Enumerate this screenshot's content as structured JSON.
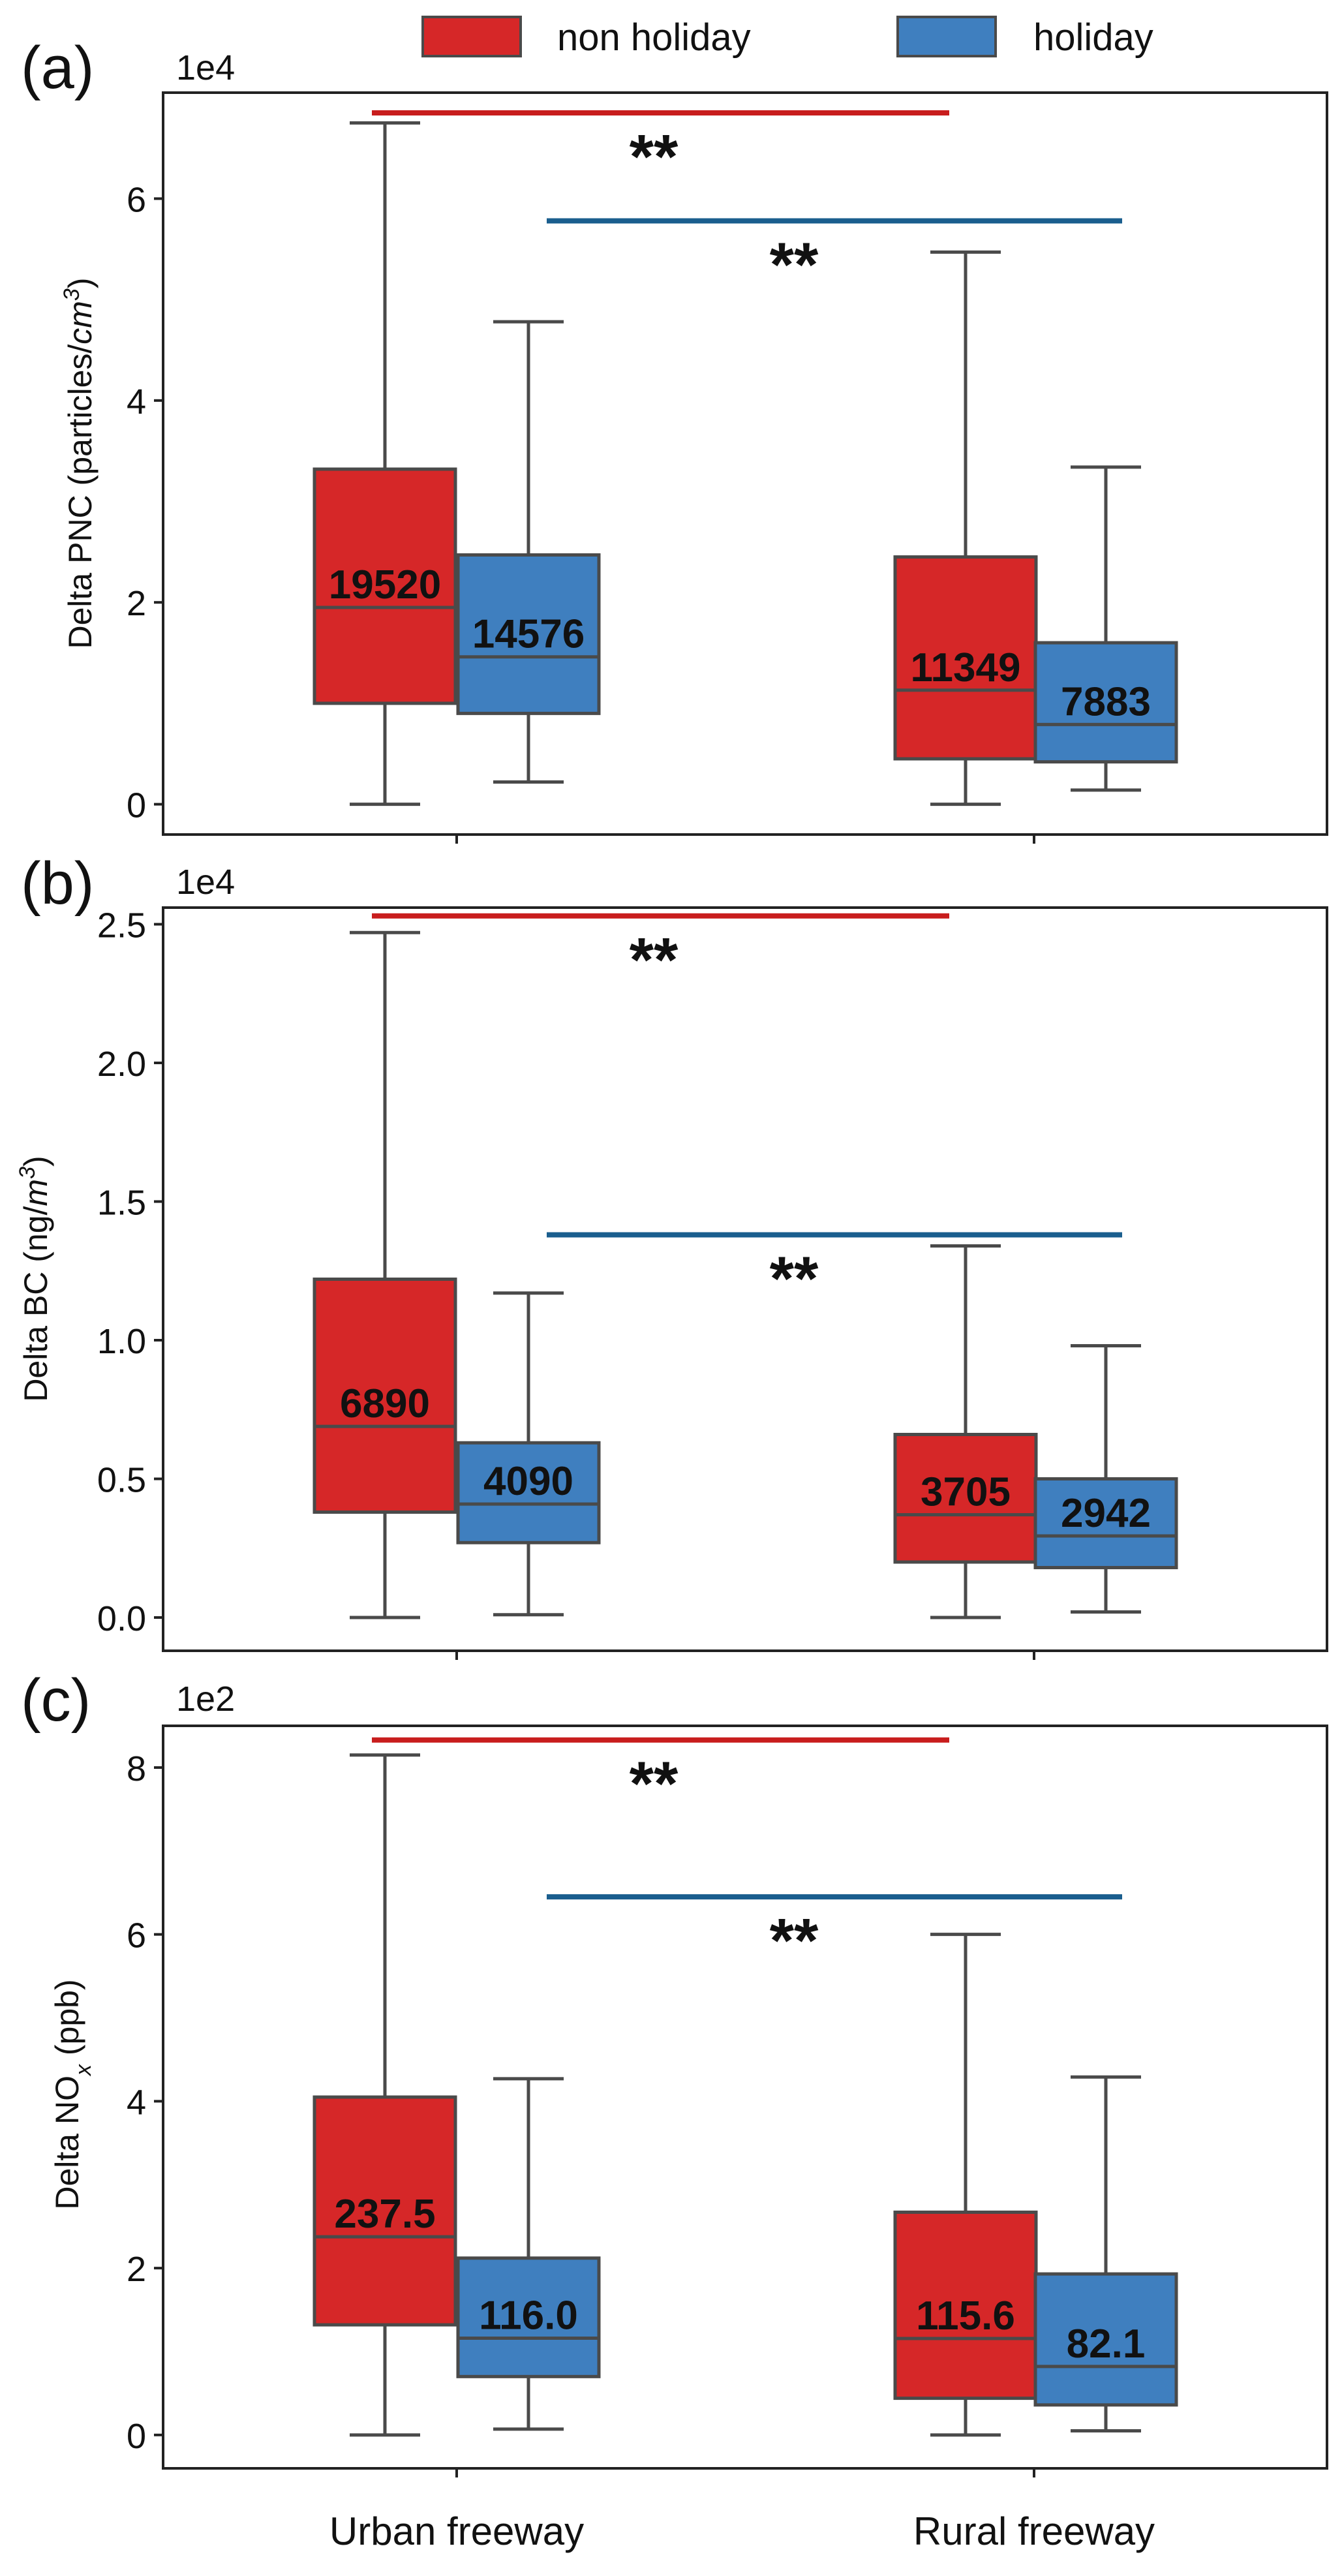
{
  "legend": {
    "position": "top-center",
    "items": [
      {
        "label": "non holiday",
        "color": "#d62728"
      },
      {
        "label": "holiday",
        "color": "#3f7fbf"
      }
    ]
  },
  "colors": {
    "non_holiday": "#d62728",
    "holiday": "#3f7fbf",
    "box_edge": "#4a4a4a",
    "sig_red": "#c81d1d",
    "sig_blue": "#1a5e8e",
    "axis": "#222222"
  },
  "chart_data": [
    {
      "type": "box",
      "panel_label": "(a)",
      "scale_label": "1e4",
      "ylabel_main": "Delta PNC (particles/",
      "ylabel_unit": "cm",
      "ylabel_sup": "3",
      "ylabel_end": ")",
      "categories": [
        "Urban freeway",
        "Rural freeway"
      ],
      "ylim": [
        -0.3,
        7.05
      ],
      "yticks": [
        0,
        2,
        4,
        6
      ],
      "ytick_labels": [
        "0",
        "2",
        "4",
        "6"
      ],
      "series": [
        {
          "name": "non holiday",
          "boxes": [
            {
              "category": "Urban freeway",
              "whislo": 0,
              "q1": 1.0,
              "med": 1.95,
              "q3": 3.32,
              "whishi": 6.75,
              "label": "19520"
            },
            {
              "category": "Rural freeway",
              "whislo": 0,
              "q1": 0.45,
              "med": 1.13,
              "q3": 2.45,
              "whishi": 5.47,
              "label": "11349"
            }
          ]
        },
        {
          "name": "holiday",
          "boxes": [
            {
              "category": "Urban freeway",
              "whislo": 0.22,
              "q1": 0.9,
              "med": 1.46,
              "q3": 2.47,
              "whishi": 4.78,
              "label": "14576"
            },
            {
              "category": "Rural freeway",
              "whislo": 0.14,
              "q1": 0.42,
              "med": 0.79,
              "q3": 1.6,
              "whishi": 3.34,
              "label": "7883"
            }
          ]
        }
      ],
      "significance": [
        {
          "series": "non holiday",
          "y": 6.85,
          "mark": "**"
        },
        {
          "series": "holiday",
          "y": 5.78,
          "mark": "**"
        }
      ]
    },
    {
      "type": "box",
      "panel_label": "(b)",
      "scale_label": "1e4",
      "ylabel_main": "Delta BC (ng/",
      "ylabel_unit": "m",
      "ylabel_sup": "3",
      "ylabel_end": ")",
      "categories": [
        "Urban freeway",
        "Rural freeway"
      ],
      "ylim": [
        -0.12,
        2.56
      ],
      "yticks": [
        0,
        0.5,
        1.0,
        1.5,
        2.0,
        2.5
      ],
      "ytick_labels": [
        "0.0",
        "0.5",
        "1.0",
        "1.5",
        "2.0",
        "2.5"
      ],
      "series": [
        {
          "name": "non holiday",
          "boxes": [
            {
              "category": "Urban freeway",
              "whislo": 0,
              "q1": 0.38,
              "med": 0.689,
              "q3": 1.22,
              "whishi": 2.47,
              "label": "6890"
            },
            {
              "category": "Rural freeway",
              "whislo": 0,
              "q1": 0.2,
              "med": 0.3705,
              "q3": 0.66,
              "whishi": 1.34,
              "label": "3705"
            }
          ]
        },
        {
          "name": "holiday",
          "boxes": [
            {
              "category": "Urban freeway",
              "whislo": 0.01,
              "q1": 0.27,
              "med": 0.409,
              "q3": 0.63,
              "whishi": 1.17,
              "label": "4090"
            },
            {
              "category": "Rural freeway",
              "whislo": 0.02,
              "q1": 0.18,
              "med": 0.2942,
              "q3": 0.5,
              "whishi": 0.98,
              "label": "2942"
            }
          ]
        }
      ],
      "significance": [
        {
          "series": "non holiday",
          "y": 2.53,
          "mark": "**"
        },
        {
          "series": "holiday",
          "y": 1.38,
          "mark": "**"
        }
      ]
    },
    {
      "type": "box",
      "panel_label": "(c)",
      "scale_label": "1e2",
      "ylabel_main": "Delta NO",
      "ylabel_sub": "x",
      "ylabel_end": " (ppb)",
      "categories": [
        "Urban freeway",
        "Rural freeway"
      ],
      "ylim": [
        -0.4,
        8.5
      ],
      "yticks": [
        0,
        2,
        4,
        6,
        8
      ],
      "ytick_labels": [
        "0",
        "2",
        "4",
        "6",
        "8"
      ],
      "series": [
        {
          "name": "non holiday",
          "boxes": [
            {
              "category": "Urban freeway",
              "whislo": 0,
              "q1": 1.32,
              "med": 2.375,
              "q3": 4.05,
              "whishi": 8.15,
              "label": "237.5"
            },
            {
              "category": "Rural freeway",
              "whislo": 0,
              "q1": 0.44,
              "med": 1.156,
              "q3": 2.67,
              "whishi": 6.0,
              "label": "115.6"
            }
          ]
        },
        {
          "name": "holiday",
          "boxes": [
            {
              "category": "Urban freeway",
              "whislo": 0.07,
              "q1": 0.7,
              "med": 1.16,
              "q3": 2.12,
              "whishi": 4.27,
              "label": "116.0"
            },
            {
              "category": "Rural freeway",
              "whislo": 0.05,
              "q1": 0.36,
              "med": 0.821,
              "q3": 1.93,
              "whishi": 4.29,
              "label": "82.1"
            }
          ]
        }
      ],
      "significance": [
        {
          "series": "non holiday",
          "y": 8.33,
          "mark": "**"
        },
        {
          "series": "holiday",
          "y": 6.45,
          "mark": "**"
        }
      ]
    }
  ]
}
